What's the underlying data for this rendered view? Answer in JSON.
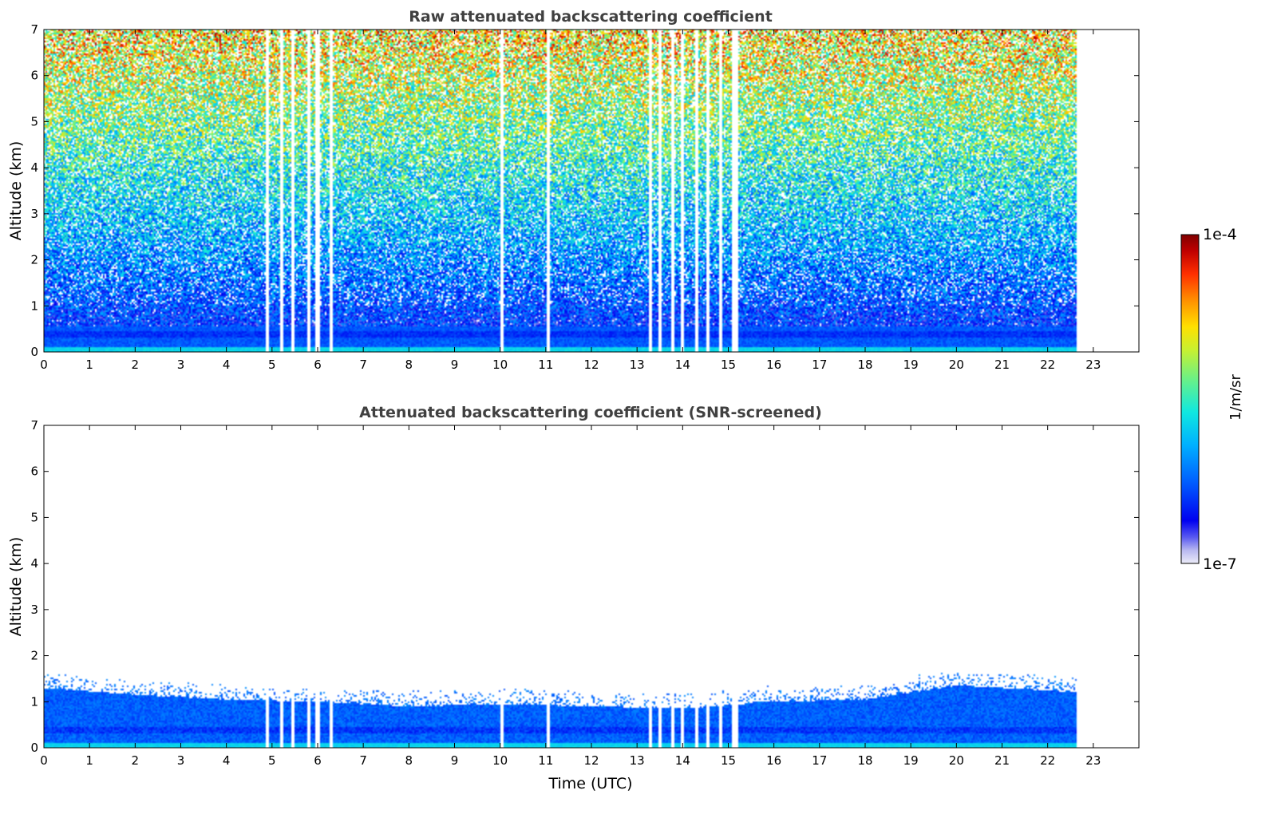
{
  "chart_data": [
    {
      "type": "heatmap",
      "title": "Raw attenuated backscattering coefficient",
      "xlabel": "",
      "ylabel": "Altitude (km)",
      "xlim": [
        0,
        24
      ],
      "ylim": [
        0,
        7
      ],
      "xticks": [
        "0",
        "1",
        "2",
        "3",
        "4",
        "5",
        "6",
        "7",
        "8",
        "9",
        "10",
        "11",
        "12",
        "13",
        "14",
        "15",
        "16",
        "17",
        "18",
        "19",
        "20",
        "21",
        "22",
        "23"
      ],
      "yticks": [
        "0",
        "1",
        "2",
        "3",
        "4",
        "5",
        "6",
        "7"
      ],
      "data_end_hour": 22.65,
      "gap_hours": [
        4.9,
        5.2,
        5.45,
        5.8,
        6.0,
        6.3,
        10.05,
        11.05,
        13.3,
        13.5,
        13.8,
        14.0,
        14.3,
        14.55,
        14.85,
        15.1,
        15.2
      ],
      "signal": "noisy backscatter: blue below 1 km rising to green/yellow/orange noise above 4 km"
    },
    {
      "type": "heatmap",
      "title": "Attenuated backscattering coefficient (SNR-screened)",
      "xlabel": "Time (UTC)",
      "ylabel": "Altitude (km)",
      "xlim": [
        0,
        24
      ],
      "ylim": [
        0,
        7
      ],
      "xticks": [
        "0",
        "1",
        "2",
        "3",
        "4",
        "5",
        "6",
        "7",
        "8",
        "9",
        "10",
        "11",
        "12",
        "13",
        "14",
        "15",
        "16",
        "17",
        "18",
        "19",
        "20",
        "21",
        "22",
        "23"
      ],
      "yticks": [
        "0",
        "1",
        "2",
        "3",
        "4",
        "5",
        "6",
        "7"
      ],
      "data_end_hour": 22.65,
      "gap_hours": [
        4.9,
        5.2,
        5.45,
        5.8,
        6.0,
        6.3,
        10.05,
        11.05,
        13.3,
        13.5,
        13.8,
        14.0,
        14.3,
        14.55,
        14.85,
        15.1,
        15.2
      ],
      "boundary_layer_top_km": [
        {
          "hour": 0,
          "km": 1.3
        },
        {
          "hour": 2,
          "km": 1.15
        },
        {
          "hour": 4,
          "km": 1.05
        },
        {
          "hour": 6,
          "km": 1.0
        },
        {
          "hour": 8,
          "km": 0.9
        },
        {
          "hour": 10,
          "km": 0.95
        },
        {
          "hour": 12,
          "km": 0.9
        },
        {
          "hour": 14,
          "km": 0.85
        },
        {
          "hour": 16,
          "km": 1.0
        },
        {
          "hour": 18,
          "km": 1.05
        },
        {
          "hour": 20,
          "km": 1.35
        },
        {
          "hour": 22,
          "km": 1.25
        },
        {
          "hour": 22.65,
          "km": 1.2
        }
      ]
    }
  ],
  "colorbar": {
    "min_label": "1e-7",
    "max_label": "1e-4",
    "unit_label": "1/m/sr",
    "scale": "log",
    "colors": [
      "#e8e8f8",
      "#c0c0f0",
      "#8888f0",
      "#4040f0",
      "#0000f0",
      "#0038f8",
      "#0070ff",
      "#00a8ff",
      "#00d8ff",
      "#20f0c8",
      "#60f090",
      "#a0f050",
      "#e0f020",
      "#ffd000",
      "#ff9000",
      "#ff5000",
      "#f01000",
      "#b00000",
      "#800000"
    ]
  }
}
